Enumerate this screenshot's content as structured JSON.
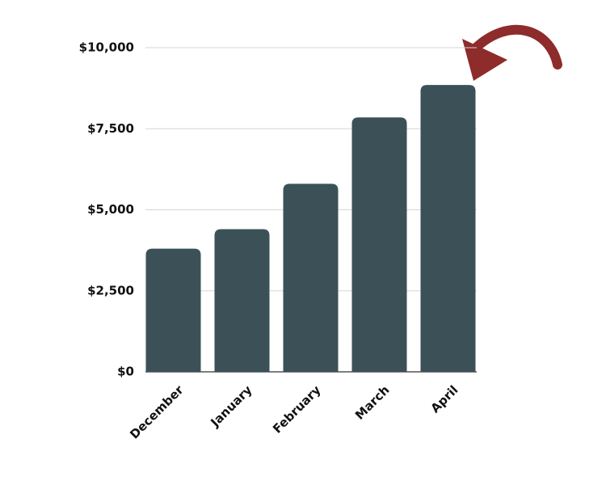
{
  "chart_data": {
    "type": "bar",
    "categories": [
      "December",
      "January",
      "February",
      "March",
      "April"
    ],
    "values": [
      3800,
      4400,
      5800,
      7850,
      8850
    ],
    "color": "#3b5157",
    "ylim": [
      0,
      10000
    ],
    "yticks": [
      {
        "value": 0,
        "label": "$0"
      },
      {
        "value": 2500,
        "label": "$2,500"
      },
      {
        "value": 5000,
        "label": "$5,000"
      },
      {
        "value": 7500,
        "label": "$7,500"
      },
      {
        "value": 10000,
        "label": "$10,000"
      }
    ],
    "grid": true
  }
}
